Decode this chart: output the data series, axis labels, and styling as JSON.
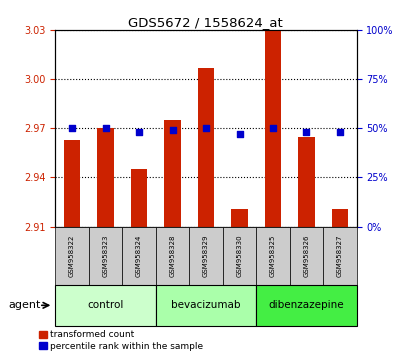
{
  "title": "GDS5672 / 1558624_at",
  "samples": [
    "GSM958322",
    "GSM958323",
    "GSM958324",
    "GSM958328",
    "GSM958329",
    "GSM958330",
    "GSM958325",
    "GSM958326",
    "GSM958327"
  ],
  "red_values": [
    2.963,
    2.97,
    2.945,
    2.975,
    3.007,
    2.921,
    3.03,
    2.965,
    2.921
  ],
  "blue_values": [
    50,
    50,
    48,
    49,
    50,
    47,
    50,
    48,
    48
  ],
  "y_min": 2.91,
  "y_max": 3.03,
  "y_ticks_red": [
    2.91,
    2.94,
    2.97,
    3.0,
    3.03
  ],
  "y_ticks_blue": [
    0,
    25,
    50,
    75,
    100
  ],
  "groups": [
    {
      "label": "control",
      "indices": [
        0,
        1,
        2
      ],
      "color": "#ccffcc"
    },
    {
      "label": "bevacizumab",
      "indices": [
        3,
        4,
        5
      ],
      "color": "#aaffaa"
    },
    {
      "label": "dibenzazepine",
      "indices": [
        6,
        7,
        8
      ],
      "color": "#44ee44"
    }
  ],
  "legend_red_label": "transformed count",
  "legend_blue_label": "percentile rank within the sample",
  "agent_label": "agent",
  "bar_color": "#cc2200",
  "dot_color": "#0000cc",
  "bar_width": 0.5,
  "dot_size": 18,
  "background_color": "#ffffff",
  "plot_bg_color": "#ffffff",
  "tick_label_color_left": "#cc2200",
  "tick_label_color_right": "#0000cc",
  "grid_color": "#000000",
  "sample_bg_color": "#cccccc"
}
